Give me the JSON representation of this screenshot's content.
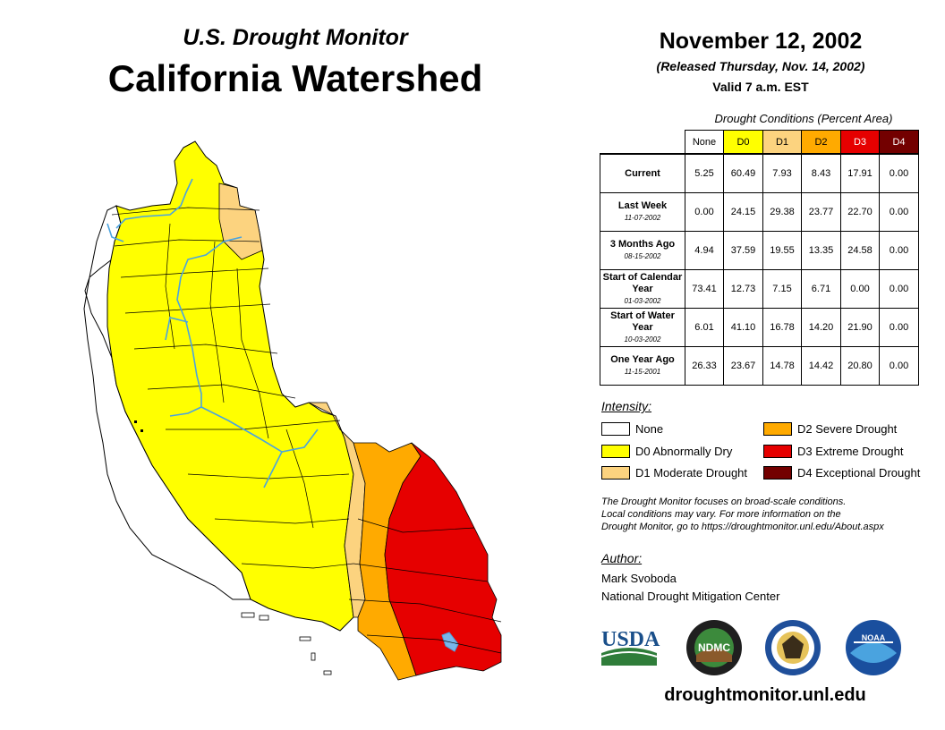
{
  "header": {
    "subtitle": "U.S. Drought Monitor",
    "title": "California Watershed",
    "date": "November 12, 2002",
    "released": "(Released Thursday, Nov. 14, 2002)",
    "valid": "Valid 7 a.m. EST"
  },
  "table": {
    "caption": "Drought Conditions (Percent Area)",
    "columns": [
      "None",
      "D0",
      "D1",
      "D2",
      "D3",
      "D4"
    ],
    "column_colors": [
      "#ffffff",
      "#ffff00",
      "#fcd37f",
      "#ffaa00",
      "#e60000",
      "#730000"
    ],
    "rows": [
      {
        "label": "Current",
        "date": "",
        "values": [
          "5.25",
          "60.49",
          "7.93",
          "8.43",
          "17.91",
          "0.00"
        ]
      },
      {
        "label": "Last Week",
        "date": "11-07-2002",
        "values": [
          "0.00",
          "24.15",
          "29.38",
          "23.77",
          "22.70",
          "0.00"
        ]
      },
      {
        "label": "3 Months Ago",
        "date": "08-15-2002",
        "values": [
          "4.94",
          "37.59",
          "19.55",
          "13.35",
          "24.58",
          "0.00"
        ]
      },
      {
        "label": "Start of Calendar Year",
        "date": "01-03-2002",
        "values": [
          "73.41",
          "12.73",
          "7.15",
          "6.71",
          "0.00",
          "0.00"
        ]
      },
      {
        "label": "Start of Water Year",
        "date": "10-03-2002",
        "values": [
          "6.01",
          "41.10",
          "16.78",
          "14.20",
          "21.90",
          "0.00"
        ]
      },
      {
        "label": "One Year Ago",
        "date": "11-15-2001",
        "values": [
          "26.33",
          "23.67",
          "14.78",
          "14.42",
          "20.80",
          "0.00"
        ]
      }
    ]
  },
  "legend": {
    "title": "Intensity:",
    "items": [
      {
        "label": "None",
        "color": "#ffffff"
      },
      {
        "label": "D0 Abnormally Dry",
        "color": "#ffff00"
      },
      {
        "label": "D1 Moderate Drought",
        "color": "#fcd37f"
      },
      {
        "label": "D2 Severe Drought",
        "color": "#ffaa00"
      },
      {
        "label": "D3 Extreme Drought",
        "color": "#e60000"
      },
      {
        "label": "D4 Exceptional Drought",
        "color": "#730000"
      }
    ]
  },
  "note": {
    "line1": "The Drought Monitor focuses on broad-scale conditions.",
    "line2": "Local conditions may vary. For more information on the",
    "line3": "Drought Monitor, go to https://droughtmonitor.unl.edu/About.aspx"
  },
  "author": {
    "heading": "Author:",
    "name": "Mark Svoboda",
    "org": "National Drought Mitigation Center"
  },
  "logos": {
    "usda": "USDA",
    "ndmc": "NDMC",
    "noaa": "NOAA"
  },
  "map": {
    "water_color": "#4aa3df",
    "boundary_color": "#000000"
  },
  "footer_url": "droughtmonitor.unl.edu"
}
